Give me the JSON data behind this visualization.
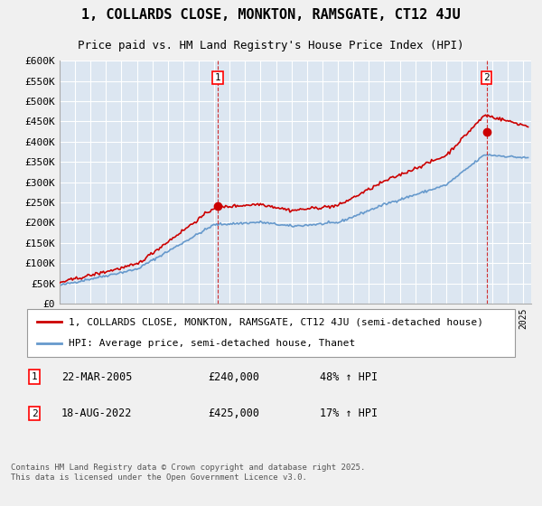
{
  "title": "1, COLLARDS CLOSE, MONKTON, RAMSGATE, CT12 4JU",
  "subtitle": "Price paid vs. HM Land Registry's House Price Index (HPI)",
  "ylabel_ticks": [
    "£0",
    "£50K",
    "£100K",
    "£150K",
    "£200K",
    "£250K",
    "£300K",
    "£350K",
    "£400K",
    "£450K",
    "£500K",
    "£550K",
    "£600K"
  ],
  "ylim": [
    0,
    600000
  ],
  "xlim_start": 1995.0,
  "xlim_end": 2025.5,
  "sale1_date": 2005.22,
  "sale1_price": 240000,
  "sale1_label": "1",
  "sale2_date": 2022.63,
  "sale2_price": 425000,
  "sale2_label": "2",
  "red_line_color": "#cc0000",
  "blue_line_color": "#6699cc",
  "sale_dot_color": "#cc0000",
  "background_color": "#dce6f1",
  "grid_color": "#ffffff",
  "legend_label1": "1, COLLARDS CLOSE, MONKTON, RAMSGATE, CT12 4JU (semi-detached house)",
  "legend_label2": "HPI: Average price, semi-detached house, Thanet",
  "sale1_date_str": "22-MAR-2005",
  "sale1_price_str": "£240,000",
  "sale1_hpi_str": "48% ↑ HPI",
  "sale2_date_str": "18-AUG-2022",
  "sale2_price_str": "£425,000",
  "sale2_hpi_str": "17% ↑ HPI",
  "footer": "Contains HM Land Registry data © Crown copyright and database right 2025.\nThis data is licensed under the Open Government Licence v3.0.",
  "title_fontsize": 11,
  "subtitle_fontsize": 9,
  "tick_fontsize": 8,
  "legend_fontsize": 8
}
